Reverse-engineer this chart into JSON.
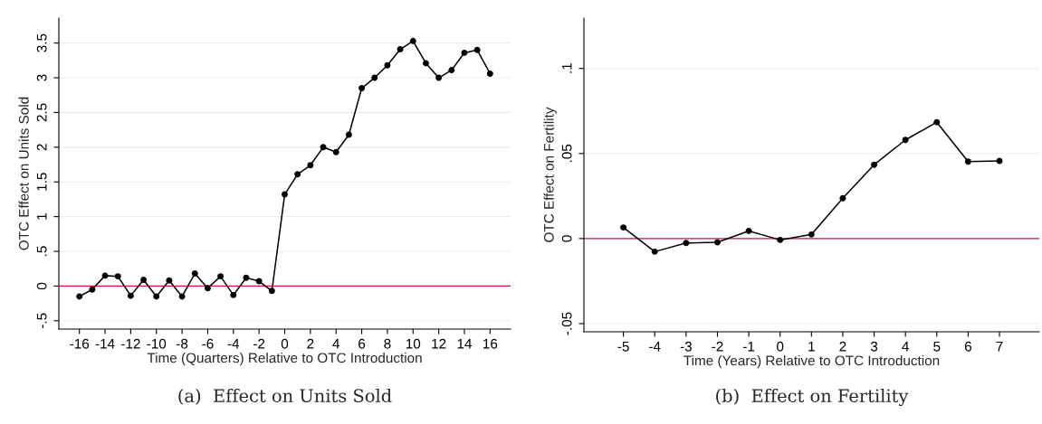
{
  "chart_data": [
    {
      "type": "line",
      "title": "(a)  Effect on Units Sold",
      "xlabel": "Time (Quarters) Relative to OTC Introduction",
      "ylabel": "OTC Effect on Units Sold",
      "x": [
        -16,
        -15,
        -14,
        -13,
        -12,
        -11,
        -10,
        -9,
        -8,
        -7,
        -6,
        -5,
        -4,
        -3,
        -2,
        -1,
        0,
        1,
        2,
        3,
        4,
        5,
        6,
        7,
        8,
        9,
        10,
        11,
        12,
        13,
        14,
        15,
        16
      ],
      "series": [
        {
          "color": "#000000",
          "values": [
            -0.15,
            -0.05,
            0.15,
            0.14,
            -0.14,
            0.09,
            -0.15,
            0.08,
            -0.15,
            0.18,
            -0.03,
            0.14,
            -0.13,
            0.12,
            0.07,
            -0.07,
            1.32,
            1.61,
            1.74,
            2.0,
            1.93,
            2.18,
            2.85,
            3.0,
            3.18,
            3.41,
            3.53,
            3.21,
            3.0,
            3.11,
            3.36,
            3.4,
            3.06
          ]
        }
      ],
      "marker": "circle",
      "line_style": "solid",
      "grid": "y",
      "xlim": [
        -17.6,
        17.6
      ],
      "xticks": [
        -16,
        -14,
        -12,
        -10,
        -8,
        -6,
        -4,
        -2,
        0,
        2,
        4,
        6,
        8,
        10,
        12,
        14,
        16
      ],
      "ylim": [
        -0.62,
        3.86
      ],
      "yticks": [
        {
          "value": -0.5,
          "label": "-.5"
        },
        0,
        {
          "value": 0.5,
          "label": ".5"
        },
        1,
        1.5,
        2,
        2.5,
        3,
        3.5
      ],
      "ref_lines": [
        {
          "axis": "y",
          "value": 0,
          "color": "#d4144a"
        }
      ]
    },
    {
      "type": "line",
      "title": "(b)  Effect on Fertility",
      "xlabel": "Time (Years) Relative to OTC Introduction",
      "ylabel": "OTC Effect on Fertility",
      "x": [
        -5,
        -4,
        -3,
        -2,
        -1,
        0,
        1,
        2,
        3,
        4,
        5,
        6,
        7
      ],
      "series": [
        {
          "color": "#000000",
          "values": [
            0.0065,
            -0.0077,
            -0.0026,
            -0.0022,
            0.0045,
            -0.0008,
            0.0024,
            0.0237,
            0.0434,
            0.058,
            0.0684,
            0.0452,
            0.0456
          ]
        }
      ],
      "marker": "circle",
      "line_style": "solid",
      "grid": "y",
      "xlim": [
        -6.26,
        8.27
      ],
      "xticks": [
        -5,
        -4,
        -3,
        -2,
        -1,
        0,
        1,
        2,
        3,
        4,
        5,
        6,
        7
      ],
      "ylim": [
        -0.0548,
        0.1296
      ],
      "yticks": [
        {
          "value": -0.05,
          "label": "-.05"
        },
        0,
        {
          "value": 0.05,
          "label": ".05"
        },
        {
          "value": 0.1,
          "label": ".1"
        }
      ],
      "ref_lines": [
        {
          "axis": "y",
          "value": 0,
          "color": "#d4144a"
        }
      ]
    }
  ]
}
